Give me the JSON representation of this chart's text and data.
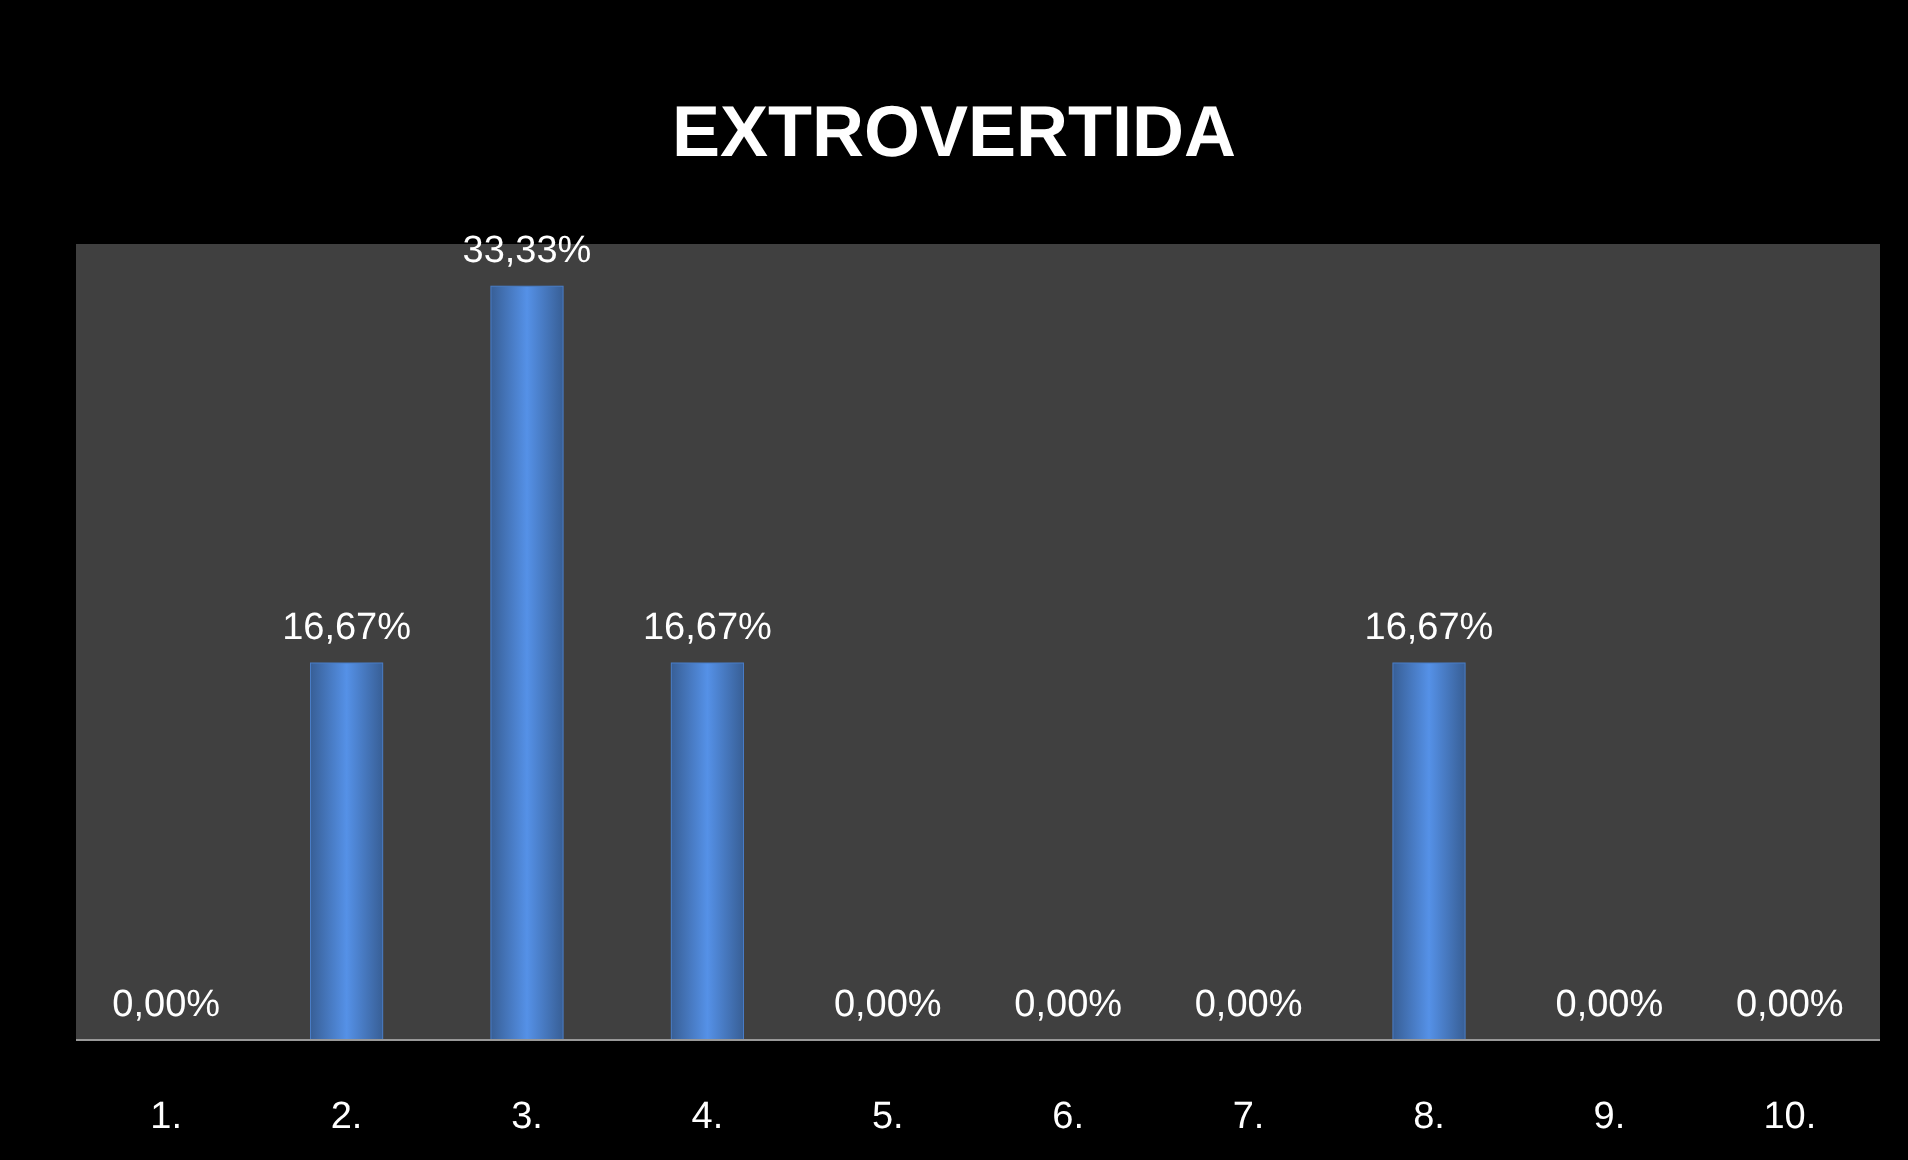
{
  "chart_data": {
    "type": "bar",
    "title": "EXTROVERTIDA",
    "categories": [
      "1.",
      "2.",
      "3.",
      "4.",
      "5.",
      "6.",
      "7.",
      "8.",
      "9.",
      "10."
    ],
    "values": [
      0,
      16.67,
      33.33,
      16.67,
      0,
      0,
      0,
      16.67,
      0,
      0
    ],
    "value_labels": [
      "0,00%",
      "16,67%",
      "33,33%",
      "16,67%",
      "0,00%",
      "0,00%",
      "0,00%",
      "16,67%",
      "0,00%",
      "0,00%"
    ],
    "color": "#4a7ec8"
  }
}
